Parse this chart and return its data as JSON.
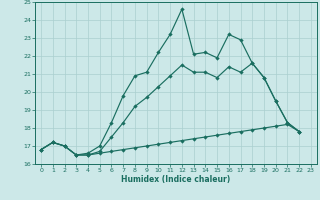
{
  "xlabel": "Humidex (Indice chaleur)",
  "bg_color": "#cce8e8",
  "grid_color": "#aacfcf",
  "line_color": "#1a6e60",
  "xlim_min": -0.5,
  "xlim_max": 23.5,
  "ylim_min": 16,
  "ylim_max": 25,
  "xticks": [
    0,
    1,
    2,
    3,
    4,
    5,
    6,
    7,
    8,
    9,
    10,
    11,
    12,
    13,
    14,
    15,
    16,
    17,
    18,
    19,
    20,
    21,
    22,
    23
  ],
  "yticks": [
    16,
    17,
    18,
    19,
    20,
    21,
    22,
    23,
    24,
    25
  ],
  "line_top_x": [
    0,
    1,
    2,
    3,
    4,
    5,
    6,
    7,
    8,
    9,
    10,
    11,
    12,
    13,
    14,
    15,
    16,
    17,
    18,
    19,
    20,
    21,
    22
  ],
  "line_top_y": [
    16.8,
    17.2,
    17.0,
    16.5,
    16.6,
    17.0,
    18.3,
    19.8,
    20.9,
    21.1,
    22.2,
    23.2,
    24.6,
    22.1,
    22.2,
    21.9,
    23.2,
    22.9,
    21.6,
    20.8,
    19.5,
    18.3,
    17.8
  ],
  "line_mid_x": [
    0,
    1,
    2,
    3,
    4,
    5,
    6,
    7,
    8,
    9,
    10,
    11,
    12,
    13,
    14,
    15,
    16,
    17,
    18,
    19,
    20,
    21,
    22
  ],
  "line_mid_y": [
    16.8,
    17.2,
    17.0,
    16.5,
    16.5,
    16.7,
    17.5,
    18.3,
    19.2,
    19.7,
    20.3,
    20.9,
    21.5,
    21.1,
    21.1,
    20.8,
    21.4,
    21.1,
    21.6,
    20.8,
    19.5,
    18.3,
    17.8
  ],
  "line_bot_x": [
    0,
    1,
    2,
    3,
    4,
    5,
    6,
    7,
    8,
    9,
    10,
    11,
    12,
    13,
    14,
    15,
    16,
    17,
    18,
    19,
    20,
    21,
    22
  ],
  "line_bot_y": [
    16.8,
    17.2,
    17.0,
    16.5,
    16.5,
    16.6,
    16.7,
    16.8,
    16.9,
    17.0,
    17.1,
    17.2,
    17.3,
    17.4,
    17.5,
    17.6,
    17.7,
    17.8,
    17.9,
    18.0,
    18.1,
    18.2,
    17.8
  ],
  "markersize": 2.2,
  "linewidth": 0.85
}
